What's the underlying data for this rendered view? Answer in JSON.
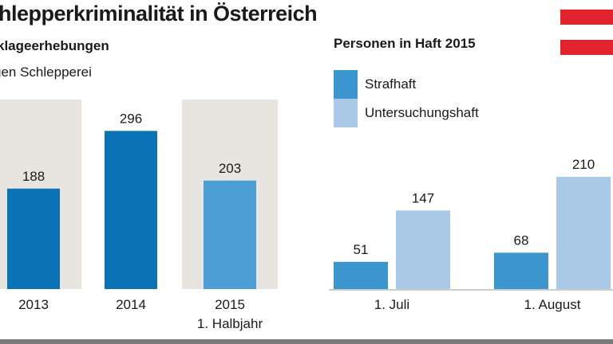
{
  "title": "hlepperkriminalität in Österreich",
  "left_subtitle": "klageerhebungen",
  "left_subtitle2": "gen Schlepperei",
  "right_title": "Personen in Haft 2015",
  "legend": [
    {
      "label": "Strafhaft",
      "color": "#3a96cc"
    },
    {
      "label": "Untersuchungshaft",
      "color": "#a9c9e6"
    }
  ],
  "colors": {
    "panel_bg": "#e8e5e0",
    "bar_dark": "#0b72b6",
    "bar_light_left": "#4c9ed4",
    "strafhaft": "#3a96cc",
    "untersuchungshaft": "#a9c9e6",
    "flag_red": "#e3232b",
    "flag_white": "#ffffff"
  },
  "chart_data": [
    {
      "type": "bar",
      "title": "klageerhebungen gen Schlepperei",
      "categories": [
        "2013",
        "2014",
        "2015 1. Halbjahr"
      ],
      "category_lines": [
        [
          "2013"
        ],
        [
          "2014"
        ],
        [
          "2015",
          "1. Halbjahr"
        ]
      ],
      "values": [
        188,
        296,
        203
      ],
      "ylim": [
        0,
        330
      ]
    },
    {
      "type": "bar",
      "title": "Personen in Haft 2015",
      "categories": [
        "1. Juli",
        "1. August"
      ],
      "series": [
        {
          "name": "Strafhaft",
          "values": [
            51,
            68
          ]
        },
        {
          "name": "Untersuchungshaft",
          "values": [
            147,
            210
          ]
        }
      ],
      "ylim": [
        0,
        330
      ]
    }
  ]
}
